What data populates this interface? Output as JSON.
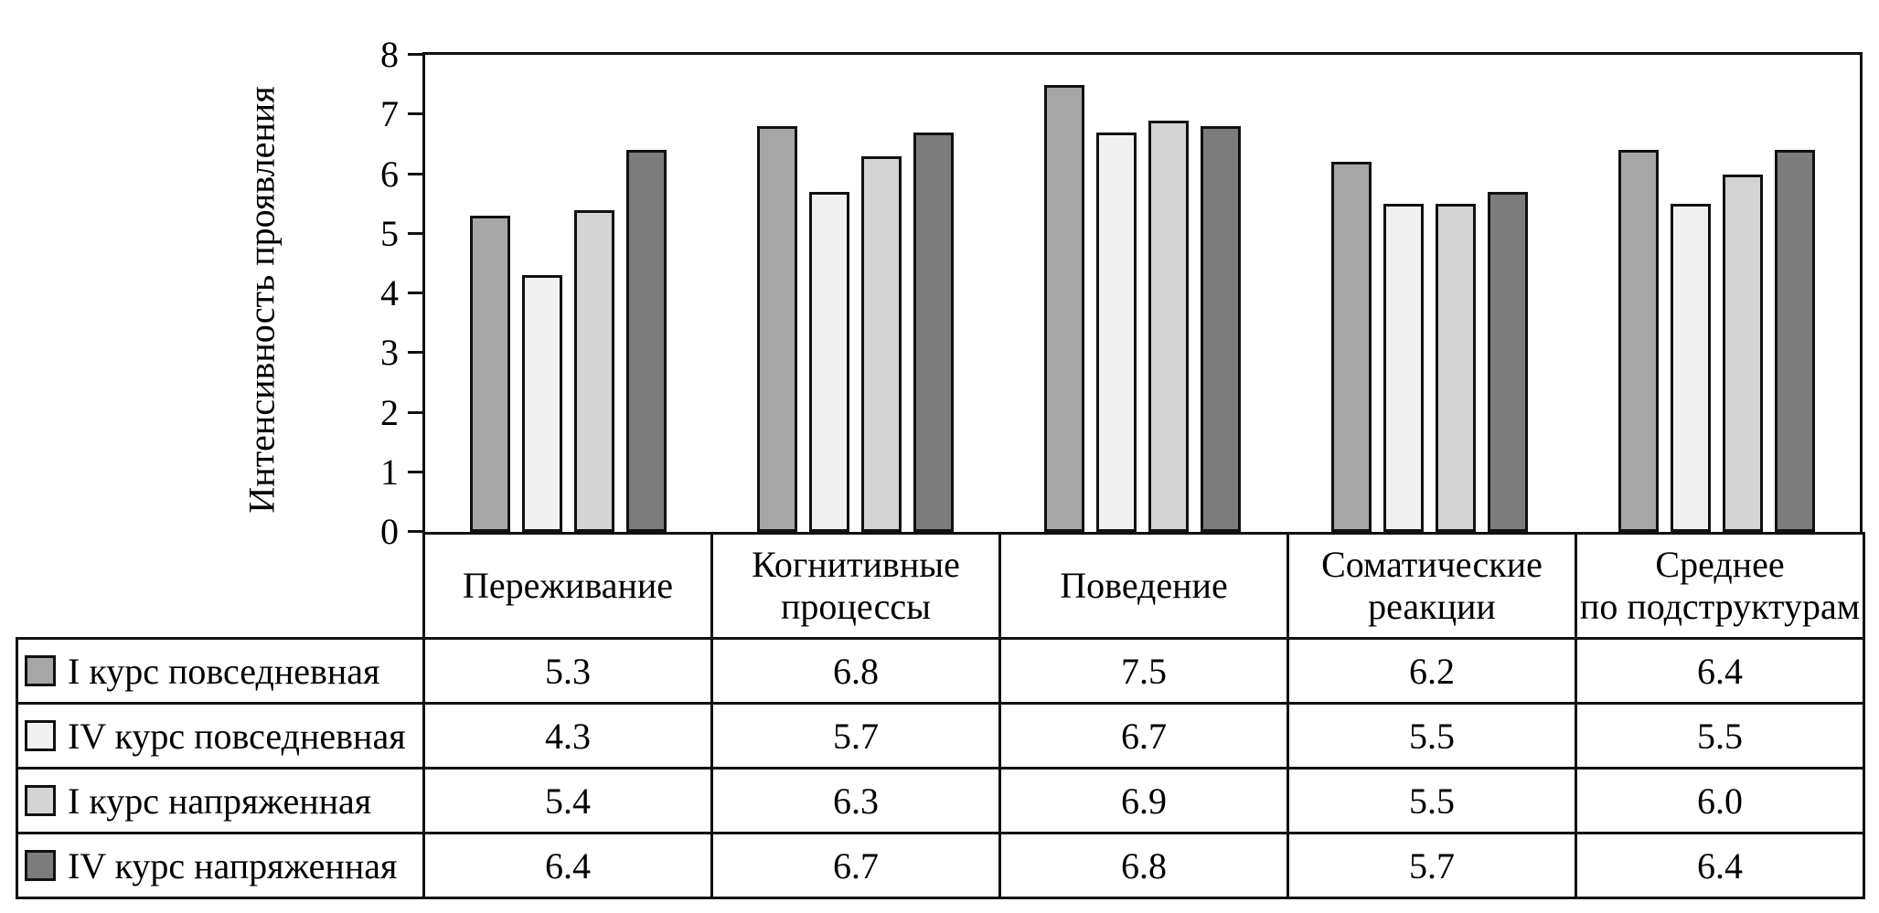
{
  "chart_data": {
    "type": "bar",
    "title": "",
    "xlabel": "",
    "ylabel": "Интенсивность проявления",
    "ylim": [
      0,
      8
    ],
    "ytick_step": 1,
    "grid": false,
    "legend_position": "table-rows-left",
    "value_format": "one-decimal",
    "frame_color": "#111111",
    "categories": [
      "Переживание",
      "Когнитивные\nпроцессы",
      "Поведение",
      "Соматические\nреакции",
      "Среднее\nпо подструктурам"
    ],
    "series": [
      {
        "name": "I курс повседневная",
        "color": "#a6a6a6",
        "values": [
          5.3,
          6.8,
          7.5,
          6.2,
          6.4
        ]
      },
      {
        "name": "IV курс повседневная",
        "color": "#f0f0f0",
        "values": [
          4.3,
          5.7,
          6.7,
          5.5,
          5.5
        ]
      },
      {
        "name": "I курс напряженная",
        "color": "#d4d4d4",
        "values": [
          5.4,
          6.3,
          6.9,
          5.5,
          6.0
        ]
      },
      {
        "name": "IV курс напряженная",
        "color": "#7c7c7c",
        "values": [
          6.4,
          6.7,
          6.8,
          5.7,
          6.4
        ]
      }
    ]
  }
}
